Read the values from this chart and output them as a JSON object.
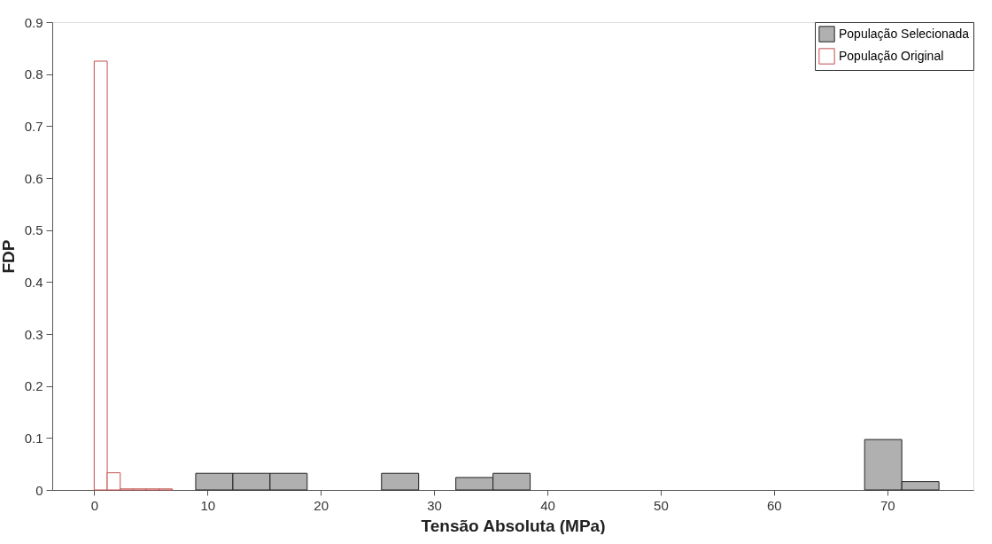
{
  "chart_data": {
    "type": "bar",
    "xlabel": "Tensão Absoluta (MPa)",
    "ylabel": "FDP",
    "series": [
      {
        "name": "População Selecionada",
        "color": "#b0b0b0",
        "x": [
          10.6,
          13.88,
          17.16,
          27.0,
          33.56,
          36.84,
          69.64,
          72.92
        ],
        "values": [
          0.032,
          0.032,
          0.032,
          0.032,
          0.024,
          0.032,
          0.097,
          0.016
        ]
      },
      {
        "name": "População Original",
        "color": "#c0504d",
        "x": [
          0.575,
          1.725,
          2.875,
          4.025,
          5.175,
          6.325
        ],
        "values": [
          0.825,
          0.033,
          0.002,
          0.002,
          0.002,
          0.002
        ]
      }
    ],
    "xlim": [
      -3.7,
      77.6
    ],
    "xticks": [
      0,
      10,
      20,
      30,
      40,
      50,
      60,
      70
    ],
    "ylim": [
      0,
      0.9
    ],
    "yticks": [
      0,
      0.1,
      0.2,
      0.3,
      0.4,
      0.5,
      0.6,
      0.7,
      0.8,
      0.9
    ],
    "grid": false,
    "legend": "top right"
  }
}
